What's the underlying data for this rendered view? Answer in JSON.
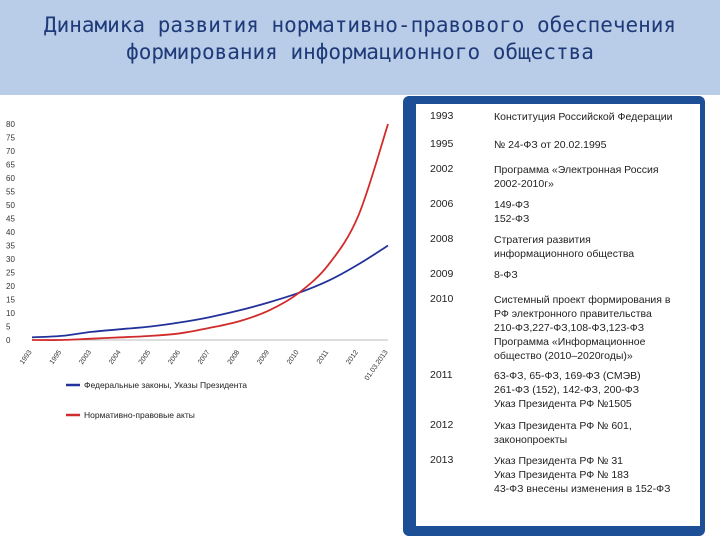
{
  "page": {
    "title_line1": "Динамика развития нормативно-правового обеспечения",
    "title_line2": "формирования информационного общества"
  },
  "chart_data": {
    "type": "line",
    "title": "",
    "xlabel": "",
    "ylabel": "",
    "ylim": [
      0,
      80
    ],
    "yticks": [
      0,
      5,
      10,
      15,
      20,
      25,
      30,
      35,
      40,
      45,
      50,
      55,
      60,
      65,
      70,
      75,
      80
    ],
    "x_tick_labels": [
      "1993",
      "1995",
      "2003",
      "2004",
      "2005",
      "2006",
      "2007",
      "2008",
      "2009",
      "2010",
      "2011",
      "2012",
      "01.03.2013"
    ],
    "legend_position": "bottom",
    "grid": false,
    "series": [
      {
        "name": "Федеральные законы, Указы Президента",
        "color": "#23329a",
        "values": [
          1,
          1.5,
          3,
          4,
          5,
          6.5,
          8.5,
          11,
          14,
          17.5,
          22,
          28,
          35
        ]
      },
      {
        "name": "Нормативно-правовые акты",
        "color": "#d22b2b",
        "values": [
          0,
          0,
          0.5,
          1,
          1.5,
          2.5,
          4.5,
          7,
          11,
          17.5,
          28,
          46,
          80
        ]
      }
    ]
  },
  "timeline": {
    "rows": [
      {
        "year": "1993",
        "lines": [
          "Конституция Российской Федерации"
        ]
      },
      {
        "year": "1995",
        "lines": [
          "№ 24-ФЗ от 20.02.1995"
        ]
      },
      {
        "year": "2002",
        "lines": [
          "Программа «Электронная Россия",
          "2002-2010г»"
        ]
      },
      {
        "year": "2006",
        "lines": [
          "149-ФЗ",
          "152-ФЗ"
        ]
      },
      {
        "year": "2008",
        "lines": [
          "Стратегия развития",
          "информационного общества"
        ]
      },
      {
        "year": "2009",
        "lines": [
          "8-ФЗ"
        ]
      },
      {
        "year": "2010",
        "lines": [
          "Системный проект формирования в",
          "РФ электронного правительства",
          "210-ФЗ,227-ФЗ,108-ФЗ,123-ФЗ",
          "Программа «Информационное",
          "общество (2010–2020годы)»"
        ]
      },
      {
        "year": "2011",
        "lines": [
          "63-ФЗ, 65-ФЗ, 169-ФЗ (СМЭВ)",
          "261-ФЗ (152), 142-ФЗ, 200-ФЗ",
          "Указ Президента РФ №1505"
        ]
      },
      {
        "year": "2012",
        "lines": [
          "Указ  Президента РФ № 601,",
          "законопроекты"
        ]
      },
      {
        "year": "2013",
        "lines": [
          "Указ Президента РФ №  31",
          "Указ Президента РФ № 183",
          "43-ФЗ внесены изменения в 152-ФЗ"
        ]
      }
    ]
  }
}
